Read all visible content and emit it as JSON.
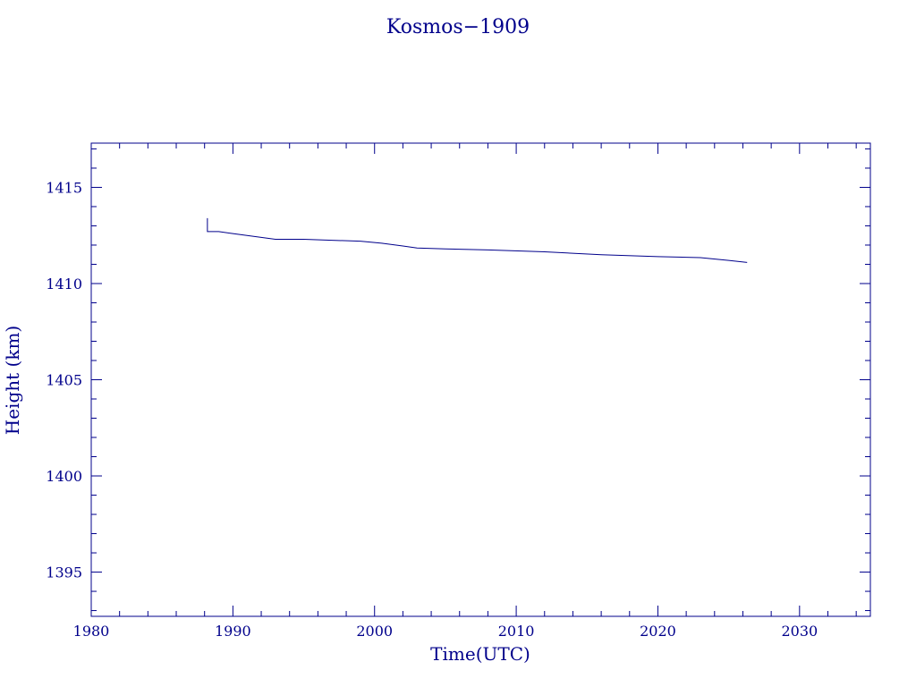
{
  "chart_data": {
    "type": "line",
    "title": "Kosmos−1909",
    "xlabel": "Time(UTC)",
    "ylabel": "Height (km)",
    "xlim": [
      1980,
      2035
    ],
    "ylim": [
      1392.7,
      1417.3
    ],
    "xticks": [
      "1980",
      "1990",
      "2000",
      "2010",
      "2020",
      "2030"
    ],
    "yticks": [
      "1395",
      "1400",
      "1405",
      "1410",
      "1415"
    ],
    "grid": false,
    "color": "#00008b",
    "series": [
      {
        "x": [
          1988.2,
          1988.2,
          1989.0,
          1990.0,
          1991.0,
          1992.0,
          1993.0,
          1995.0,
          1997.0,
          1999.0,
          2000.5,
          2002.0,
          2003.0,
          2005.0,
          2008.0,
          2012.0,
          2016.0,
          2020.0,
          2023.0,
          2025.0,
          2026.3
        ],
        "y": [
          1413.4,
          1412.7,
          1412.7,
          1412.6,
          1412.5,
          1412.4,
          1412.3,
          1412.3,
          1412.25,
          1412.2,
          1412.1,
          1411.95,
          1411.85,
          1411.8,
          1411.75,
          1411.65,
          1411.5,
          1411.4,
          1411.35,
          1411.2,
          1411.1
        ]
      }
    ]
  }
}
